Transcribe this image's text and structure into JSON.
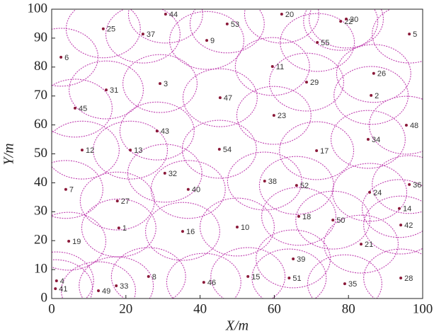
{
  "chart_data": {
    "type": "scatter",
    "x_label": "X/m",
    "y_label": "Y/m",
    "labels": [
      "1",
      "2",
      "3",
      "4",
      "5",
      "6",
      "7",
      "8",
      "9",
      "10",
      "11",
      "12",
      "13",
      "14",
      "15",
      "16",
      "17",
      "18",
      "19",
      "20",
      "21",
      "22",
      "23",
      "24",
      "25",
      "26",
      "27",
      "28",
      "29",
      "30",
      "31",
      "32",
      "33",
      "34",
      "35",
      "36",
      "37",
      "38",
      "39",
      "40",
      "41",
      "42",
      "43",
      "44",
      "45",
      "46",
      "47",
      "48",
      "49",
      "50",
      "51",
      "52",
      "53",
      "54",
      "55"
    ],
    "x": [
      18.1,
      86.1,
      29.2,
      1.3,
      96.4,
      2.5,
      3.8,
      26.1,
      41.8,
      50.0,
      59.5,
      8.2,
      21.2,
      93.7,
      52.9,
      35.3,
      71.4,
      66.6,
      4.6,
      62.0,
      83.4,
      77.9,
      59.9,
      85.7,
      13.9,
      86.8,
      17.7,
      94.1,
      68.7,
      79.4,
      14.7,
      30.5,
      17.4,
      85.3,
      79.0,
      96.4,
      24.6,
      57.4,
      65.1,
      36.8,
      1.0,
      94.1,
      28.4,
      30.7,
      6.3,
      41.0,
      45.4,
      95.6,
      12.6,
      75.8,
      64.0,
      66.0,
      47.3,
      45.2,
      71.6
    ],
    "y": [
      24.4,
      70.2,
      74.3,
      6.1,
      91.4,
      83.4,
      37.7,
      7.6,
      89.2,
      24.7,
      80.2,
      51.3,
      51.3,
      31.1,
      7.6,
      23.2,
      51.1,
      28.4,
      19.8,
      98.3,
      18.8,
      95.8,
      63.3,
      36.7,
      93.2,
      77.8,
      33.7,
      7.1,
      74.8,
      96.6,
      72.1,
      43.3,
      4.4,
      55.0,
      5.1,
      39.4,
      91.4,
      40.6,
      13.7,
      37.7,
      3.4,
      25.4,
      57.9,
      98.3,
      65.8,
      5.6,
      69.4,
      59.9,
      2.7,
      27.1,
      7.1,
      39.1,
      94.9,
      51.6,
      88.5
    ],
    "circle_radius": 10,
    "point_color": "#8b1a3a",
    "circle_color": "#c040b0",
    "xlim": [
      0,
      100
    ],
    "ylim": [
      0,
      100
    ],
    "xticks": [
      0,
      20,
      40,
      60,
      80,
      100
    ],
    "yticks": [
      0,
      10,
      20,
      30,
      40,
      50,
      60,
      70,
      80,
      90,
      100
    ]
  }
}
